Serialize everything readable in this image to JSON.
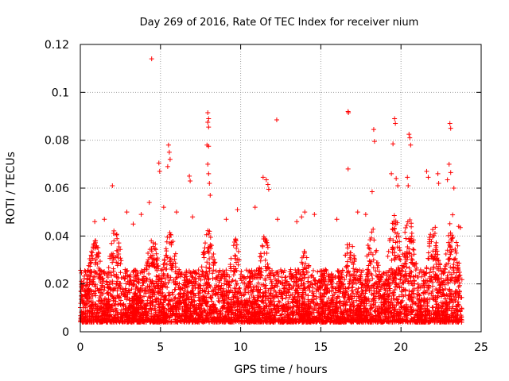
{
  "chart_data": {
    "type": "scatter",
    "title": "Day 269 of 2016, Rate Of TEC Index for receiver nium",
    "xlabel": "GPS time / hours",
    "ylabel": "ROTI / TECUs",
    "xlim": [
      0,
      25
    ],
    "ylim": [
      0,
      0.12
    ],
    "xticks": [
      0,
      5,
      10,
      15,
      20,
      25
    ],
    "xtick_labels": [
      "0",
      "5",
      "10",
      "15",
      "20",
      "25"
    ],
    "yticks": [
      0,
      0.02,
      0.04,
      0.06,
      0.08,
      0.1,
      0.12
    ],
    "ytick_labels": [
      "0",
      "0.02",
      "0.04",
      "0.06",
      "0.08",
      "0.1",
      "0.12"
    ],
    "grid": true,
    "marker": "+",
    "color": "#ff0000",
    "series": [
      {
        "name": "ROTI",
        "points": [
          [
            4.45,
            0.114
          ],
          [
            16.7,
            0.092
          ],
          [
            16.72,
            0.0915
          ],
          [
            12.25,
            0.0885
          ],
          [
            19.6,
            0.089
          ],
          [
            19.65,
            0.087
          ],
          [
            23.05,
            0.087
          ],
          [
            23.1,
            0.085
          ],
          [
            7.95,
            0.0915
          ],
          [
            8.0,
            0.089
          ],
          [
            7.95,
            0.0875
          ],
          [
            8.0,
            0.0855
          ],
          [
            18.3,
            0.0845
          ],
          [
            18.35,
            0.0795
          ],
          [
            20.5,
            0.0825
          ],
          [
            20.55,
            0.081
          ],
          [
            20.6,
            0.078
          ],
          [
            19.5,
            0.0785
          ],
          [
            7.9,
            0.078
          ],
          [
            8.0,
            0.0775
          ],
          [
            5.5,
            0.078
          ],
          [
            5.55,
            0.075
          ],
          [
            5.6,
            0.072
          ],
          [
            5.45,
            0.069
          ],
          [
            4.9,
            0.0705
          ],
          [
            4.95,
            0.067
          ],
          [
            16.7,
            0.068
          ],
          [
            19.4,
            0.066
          ],
          [
            6.8,
            0.065
          ],
          [
            6.85,
            0.063
          ],
          [
            11.4,
            0.0645
          ],
          [
            11.6,
            0.0635
          ],
          [
            11.7,
            0.0615
          ],
          [
            11.75,
            0.0595
          ],
          [
            2.0,
            0.061
          ],
          [
            23.0,
            0.07
          ],
          [
            23.1,
            0.0665
          ],
          [
            22.9,
            0.0635
          ],
          [
            21.6,
            0.067
          ],
          [
            21.7,
            0.0645
          ],
          [
            22.3,
            0.066
          ],
          [
            22.35,
            0.062
          ],
          [
            20.4,
            0.0645
          ],
          [
            20.45,
            0.061
          ],
          [
            19.7,
            0.064
          ],
          [
            19.8,
            0.061
          ],
          [
            7.95,
            0.07
          ],
          [
            8.0,
            0.066
          ],
          [
            8.05,
            0.062
          ],
          [
            8.1,
            0.057
          ],
          [
            18.2,
            0.0585
          ],
          [
            23.3,
            0.06
          ],
          [
            4.3,
            0.054
          ],
          [
            6.0,
            0.05
          ],
          [
            9.8,
            0.051
          ],
          [
            10.9,
            0.052
          ],
          [
            13.8,
            0.048
          ],
          [
            14.0,
            0.05
          ],
          [
            14.6,
            0.049
          ],
          [
            17.3,
            0.05
          ],
          [
            17.8,
            0.049
          ],
          [
            3.8,
            0.049
          ],
          [
            2.9,
            0.05
          ],
          [
            1.5,
            0.047
          ],
          [
            0.9,
            0.046
          ],
          [
            16.0,
            0.047
          ],
          [
            13.5,
            0.046
          ],
          [
            12.3,
            0.047
          ],
          [
            23.6,
            0.044
          ],
          [
            23.7,
            0.0435
          ],
          [
            3.3,
            0.045
          ],
          [
            5.2,
            0.052
          ],
          [
            7.0,
            0.048
          ],
          [
            9.1,
            0.047
          ]
        ]
      }
    ]
  }
}
